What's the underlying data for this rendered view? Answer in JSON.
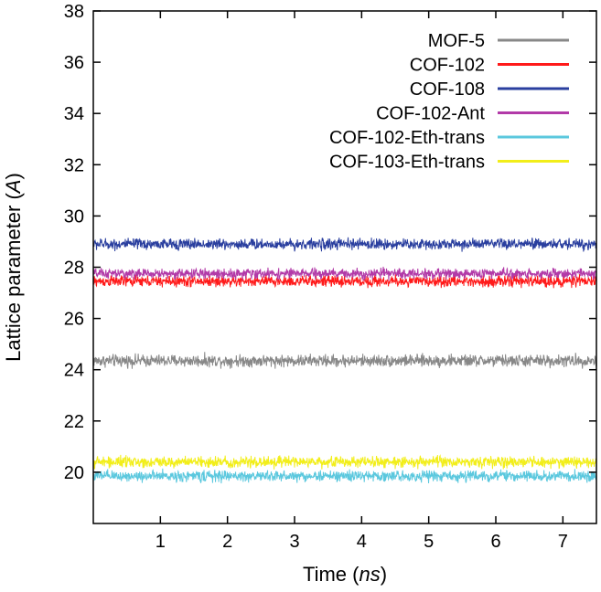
{
  "chart_data": {
    "type": "line",
    "title": "",
    "xlabel": "Time (ns)",
    "ylabel": "Lattice parameter (A)",
    "xlabel_parts": {
      "text": "Time (",
      "italic": "ns",
      "close": ")"
    },
    "ylabel_parts": {
      "text": "Lattice parameter (",
      "italic": "A",
      "close": ")"
    },
    "xlim": [
      0,
      7.5
    ],
    "ylim": [
      18,
      38
    ],
    "xticks": [
      1,
      2,
      3,
      4,
      5,
      6,
      7
    ],
    "yticks": [
      20,
      22,
      24,
      26,
      28,
      30,
      32,
      34,
      36,
      38
    ],
    "grid": false,
    "legend_position": "top-right",
    "series": [
      {
        "name": "MOF-5",
        "color": "#888888",
        "mean": 24.35,
        "fluctuation": 0.22
      },
      {
        "name": "COF-102",
        "color": "#ff1a1a",
        "mean": 27.45,
        "fluctuation": 0.2
      },
      {
        "name": "COF-108",
        "color": "#2a3f9f",
        "mean": 28.9,
        "fluctuation": 0.2
      },
      {
        "name": "COF-102-Ant",
        "color": "#b23aa8",
        "mean": 27.75,
        "fluctuation": 0.18
      },
      {
        "name": "COF-102-Eth-trans",
        "color": "#5bc8de",
        "mean": 19.85,
        "fluctuation": 0.2
      },
      {
        "name": "COF-103-Eth-trans",
        "color": "#f2ee1a",
        "mean": 20.4,
        "fluctuation": 0.2
      }
    ],
    "draw_order": [
      4,
      5,
      0,
      1,
      3,
      2
    ]
  }
}
